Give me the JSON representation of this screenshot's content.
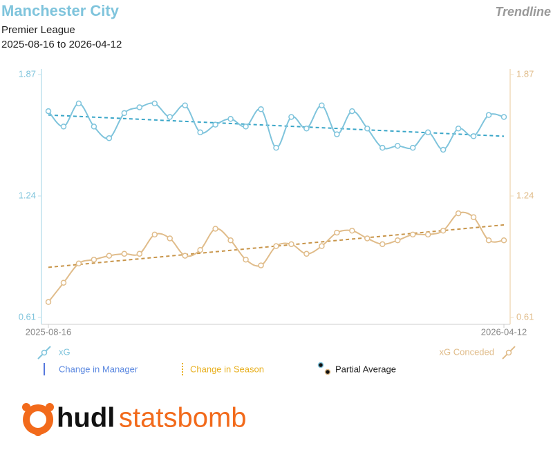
{
  "chart_data": {
    "type": "line",
    "title": "Manchester City",
    "subtitle": "Premier League",
    "date_range": "2025-08-16 to 2026-04-12",
    "badge": "Trendline",
    "categories": [
      "2025-08-16",
      null,
      null,
      null,
      null,
      null,
      null,
      null,
      null,
      null,
      null,
      null,
      null,
      null,
      null,
      null,
      null,
      null,
      null,
      null,
      null,
      null,
      null,
      null,
      null,
      null,
      null,
      null,
      null,
      null,
      "2026-04-12"
    ],
    "ylim": [
      0.61,
      1.87
    ],
    "yticks": [
      0.61,
      1.24,
      1.87
    ],
    "y2lim": [
      0.61,
      1.87
    ],
    "y2ticks": [
      0.61,
      1.24,
      1.87
    ],
    "series": [
      {
        "name": "xG",
        "color": "#7fc4dc",
        "trend_color": "#3aa6c8",
        "values": [
          1.68,
          1.6,
          1.72,
          1.6,
          1.54,
          1.67,
          1.7,
          1.72,
          1.65,
          1.71,
          1.57,
          1.61,
          1.64,
          1.6,
          1.69,
          1.49,
          1.65,
          1.59,
          1.71,
          1.56,
          1.68,
          1.59,
          1.49,
          1.5,
          1.49,
          1.57,
          1.48,
          1.59,
          1.55,
          1.66,
          1.65
        ],
        "trendline": [
          1.66,
          1.55
        ]
      },
      {
        "name": "xG Conceded",
        "color": "#e0bc8a",
        "trend_color": "#c8954a",
        "axis": "y2",
        "values": [
          0.69,
          0.79,
          0.89,
          0.91,
          0.93,
          0.94,
          0.94,
          1.04,
          1.02,
          0.93,
          0.96,
          1.07,
          1.01,
          0.91,
          0.88,
          0.98,
          0.99,
          0.94,
          0.98,
          1.05,
          1.06,
          1.02,
          0.99,
          1.01,
          1.04,
          1.04,
          1.06,
          1.15,
          1.13,
          1.01,
          1.01
        ],
        "trendline": [
          0.87,
          1.09
        ]
      }
    ],
    "legend_extra": [
      "Change in Manager",
      "Change in Season",
      "Partial Average"
    ],
    "logo": [
      "hudl",
      "statsbomb"
    ]
  }
}
